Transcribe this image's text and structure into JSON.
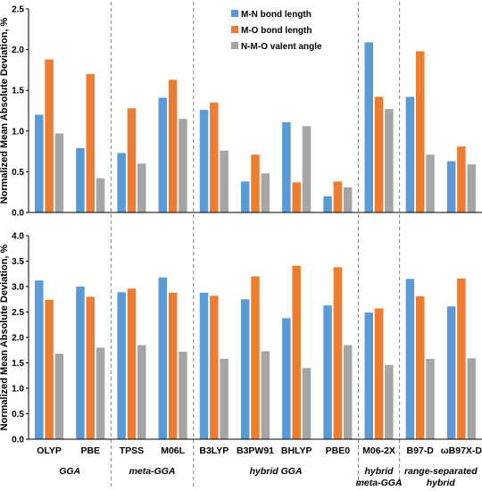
{
  "colors": {
    "mn": "#5b9bd5",
    "mo": "#ed7d31",
    "nmo": "#a5a5a5",
    "axis": "#000000",
    "divider": "#7f7f7f"
  },
  "groups": [
    {
      "line1": "GGA",
      "line2": "",
      "from": 0,
      "to": 1
    },
    {
      "line1": "meta-GGA",
      "line2": "",
      "from": 2,
      "to": 3
    },
    {
      "line1": "hybrid GGA",
      "line2": "",
      "from": 4,
      "to": 7
    },
    {
      "line1": "hybrid",
      "line2": "meta-GGA",
      "from": 8,
      "to": 8
    },
    {
      "line1": "range-separated",
      "line2": "hybrid",
      "from": 9,
      "to": 10
    }
  ],
  "chart_data": [
    {
      "type": "bar",
      "categories": [
        "OLYP",
        "PBE",
        "TPSS",
        "M06L",
        "B3LYP",
        "B3PW91",
        "BHLYP",
        "PBE0",
        "M06-2X",
        "B97-D",
        "ωB97X-D"
      ],
      "series": [
        {
          "name": "M-N bond length",
          "color": "#5b9bd5",
          "values": [
            1.2,
            0.79,
            0.73,
            1.41,
            1.26,
            0.38,
            1.11,
            0.2,
            2.09,
            1.42,
            0.63
          ]
        },
        {
          "name": "M-O bond length",
          "color": "#ed7d31",
          "values": [
            1.88,
            1.7,
            1.28,
            1.63,
            1.35,
            0.71,
            0.37,
            0.38,
            1.42,
            1.98,
            0.81
          ]
        },
        {
          "name": "N-M-O valent angle",
          "color": "#a5a5a5",
          "values": [
            0.97,
            0.42,
            0.6,
            1.15,
            0.76,
            0.48,
            1.06,
            0.31,
            1.27,
            0.71,
            0.59
          ]
        }
      ],
      "ylabel": "Normalized Mean Absolute Deviation, %",
      "ylim": [
        0,
        2.5
      ],
      "yticks": [
        "0.0",
        "0.5",
        "1.0",
        "1.5",
        "2.0",
        "2.5"
      ],
      "grid": false,
      "legend": "top-center"
    },
    {
      "type": "bar",
      "categories": [
        "OLYP",
        "PBE",
        "TPSS",
        "M06L",
        "B3LYP",
        "B3PW91",
        "BHLYP",
        "PBE0",
        "M06-2X",
        "B97-D",
        "ωB97X-D"
      ],
      "series": [
        {
          "color": "#5b9bd5",
          "values": [
            3.12,
            3.0,
            2.89,
            3.18,
            2.88,
            2.75,
            2.38,
            2.63,
            2.49,
            3.15,
            2.61
          ]
        },
        {
          "color": "#ed7d31",
          "values": [
            2.74,
            2.8,
            2.96,
            2.88,
            2.82,
            3.2,
            3.41,
            3.38,
            2.57,
            2.81,
            3.16
          ]
        },
        {
          "color": "#a5a5a5",
          "values": [
            1.68,
            1.8,
            1.85,
            1.72,
            1.58,
            1.73,
            1.4,
            1.85,
            1.46,
            1.58,
            1.59
          ]
        }
      ],
      "ylabel": "Normalized Mean Absolute Deviation, %",
      "ylim": [
        0,
        4.0
      ],
      "yticks": [
        "0.0",
        "0.5",
        "1.0",
        "1.5",
        "2.0",
        "2.5",
        "3.0",
        "3.5",
        "4.0"
      ],
      "grid": false,
      "legend": "none"
    }
  ]
}
